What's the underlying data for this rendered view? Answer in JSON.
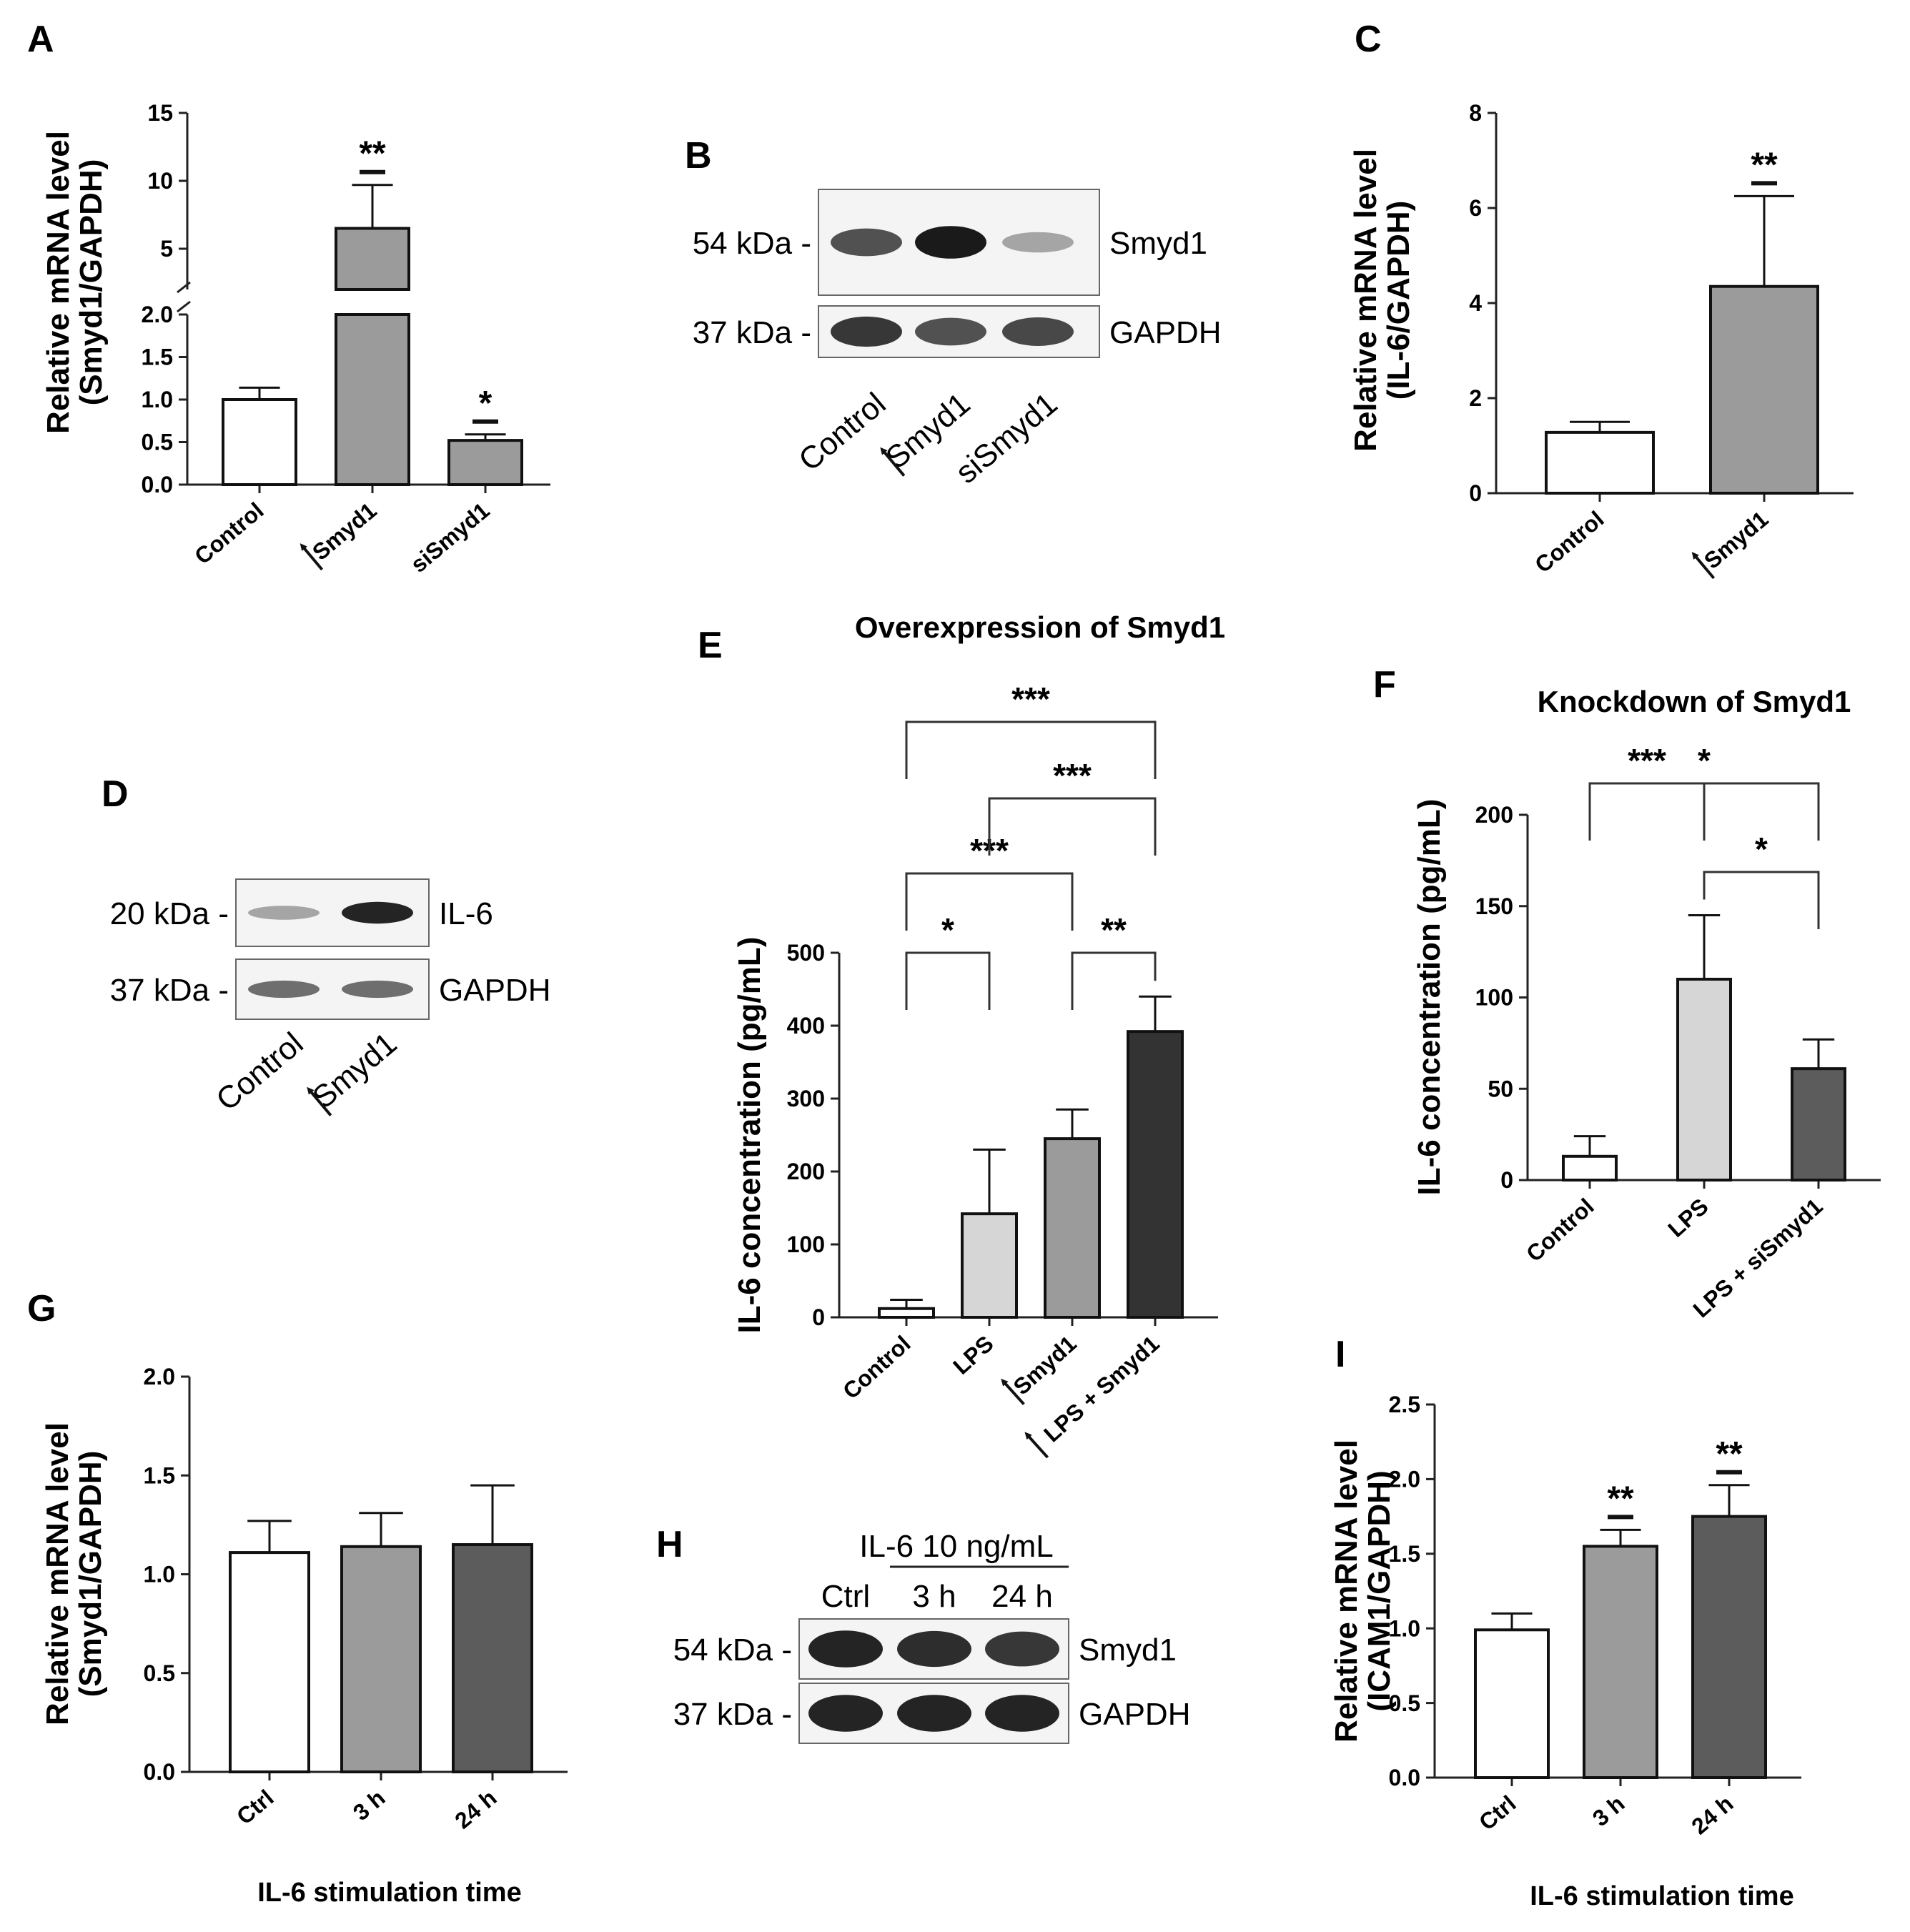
{
  "figure": {
    "panel_letters": [
      "A",
      "B",
      "C",
      "D",
      "E",
      "F",
      "G",
      "H",
      "I"
    ]
  },
  "colors": {
    "white_bar": "#ffffff",
    "light_gray": "#d6d6d6",
    "mid_gray": "#9b9b9b",
    "dark_gray": "#5c5c5c",
    "black_bar": "#333333",
    "band_dark": "#1a1a1a"
  },
  "chart_data": [
    {
      "id": "A",
      "type": "bar",
      "title": "",
      "ylabel": [
        "Relative mRNA level",
        "(Smyd1/GAPDH)"
      ],
      "xlabel": "",
      "categories": [
        "Control",
        "Smyd1",
        "siSmyd1"
      ],
      "category_arrows": [
        false,
        true,
        false
      ],
      "values": [
        1.0,
        6.5,
        0.52
      ],
      "errors": [
        0.14,
        3.2,
        0.07
      ],
      "fills": [
        "#ffffff",
        "#9b9b9b",
        "#9b9b9b"
      ],
      "significance": [
        "",
        "**",
        "*"
      ],
      "broken_axis": true,
      "lower_ylim": [
        0,
        2.0
      ],
      "lower_ticks": [
        "0.0",
        "0.5",
        "1.0",
        "1.5",
        "2.0"
      ],
      "upper_ylim": [
        2.0,
        15
      ],
      "upper_ticks": [
        "5",
        "10",
        "15"
      ]
    },
    {
      "id": "C",
      "type": "bar",
      "title": "",
      "ylabel": [
        "Relative mRNA level",
        "(IL-6/GAPDH)"
      ],
      "xlabel": "",
      "categories": [
        "Control",
        "Smyd1"
      ],
      "category_arrows": [
        false,
        true
      ],
      "values": [
        1.28,
        4.35
      ],
      "errors": [
        0.22,
        1.9
      ],
      "fills": [
        "#ffffff",
        "#9b9b9b"
      ],
      "significance": [
        "",
        "**"
      ],
      "ylim": [
        0,
        8
      ],
      "yticks": [
        "0",
        "2",
        "4",
        "6",
        "8"
      ]
    },
    {
      "id": "E",
      "type": "bar",
      "title": "Overexpression of Smyd1",
      "ylabel": [
        "IL-6 concentration (pg/mL)"
      ],
      "xlabel": "",
      "categories": [
        "Control",
        "LPS",
        "Smyd1",
        "LPS + Smyd1"
      ],
      "category_arrows": [
        false,
        false,
        true,
        true
      ],
      "values": [
        12,
        142,
        245,
        392
      ],
      "errors": [
        12,
        88,
        40,
        48
      ],
      "fills": [
        "#ffffff",
        "#d6d6d6",
        "#9b9b9b",
        "#333333"
      ],
      "ylim": [
        0,
        500
      ],
      "yticks": [
        "0",
        "100",
        "200",
        "300",
        "400",
        "500"
      ],
      "brackets": [
        {
          "from": 0,
          "to": 1,
          "label": "*"
        },
        {
          "from": 2,
          "to": 3,
          "label": "**"
        },
        {
          "from": 0,
          "to": 2,
          "label": "***"
        },
        {
          "from": 1,
          "to": 3,
          "label": "***"
        },
        {
          "from": 0,
          "to": 3,
          "label": "***"
        }
      ]
    },
    {
      "id": "F",
      "type": "bar",
      "title": "Knockdown of Smyd1",
      "ylabel": [
        "IL-6 concentration (pg/mL)"
      ],
      "xlabel": "",
      "categories": [
        "Control",
        "LPS",
        "LPS + siSmyd1"
      ],
      "category_arrows": [
        false,
        false,
        false
      ],
      "values": [
        13,
        110,
        61
      ],
      "errors": [
        11,
        35,
        16
      ],
      "fills": [
        "#ffffff",
        "#d6d6d6",
        "#5c5c5c"
      ],
      "ylim": [
        0,
        200
      ],
      "yticks": [
        "0",
        "50",
        "100",
        "150",
        "200"
      ],
      "brackets": [
        {
          "from": 0,
          "to": 1,
          "label": "***"
        },
        {
          "from": 1,
          "to": 2,
          "label": "*"
        },
        {
          "from": 0,
          "to": 2,
          "label": "*"
        }
      ]
    },
    {
      "id": "G",
      "type": "bar",
      "title": "",
      "ylabel": [
        "Relative mRNA level",
        "(Smyd1/GAPDH)"
      ],
      "xlabel": "IL-6 stimulation time",
      "categories": [
        "Ctrl",
        "3 h",
        "24 h"
      ],
      "category_arrows": [
        false,
        false,
        false
      ],
      "values": [
        1.11,
        1.14,
        1.15
      ],
      "errors": [
        0.16,
        0.17,
        0.3
      ],
      "fills": [
        "#ffffff",
        "#9b9b9b",
        "#5c5c5c"
      ],
      "significance": [
        "",
        "",
        ""
      ],
      "ylim": [
        0,
        2.0
      ],
      "yticks": [
        "0.0",
        "0.5",
        "1.0",
        "1.5",
        "2.0"
      ]
    },
    {
      "id": "I",
      "type": "bar",
      "title": "",
      "ylabel": [
        "Relative mRNA level",
        "(ICAM1/GAPDH)"
      ],
      "xlabel": "IL-6 stimulation time",
      "categories": [
        "Ctrl",
        "3 h",
        "24 h"
      ],
      "category_arrows": [
        false,
        false,
        false
      ],
      "values": [
        0.99,
        1.55,
        1.75
      ],
      "errors": [
        0.11,
        0.11,
        0.21
      ],
      "fills": [
        "#ffffff",
        "#9b9b9b",
        "#5c5c5c"
      ],
      "significance": [
        "",
        "**",
        "**"
      ],
      "ylim": [
        0,
        2.5
      ],
      "yticks": [
        "0.0",
        "0.5",
        "1.0",
        "1.5",
        "2.0",
        "2.5"
      ]
    }
  ],
  "blots": [
    {
      "id": "B",
      "rows": [
        {
          "marker": "54 kDa -",
          "protein": "Smyd1",
          "intensities": [
            0.7,
            1.0,
            0.25
          ]
        },
        {
          "marker": "37 kDa -",
          "protein": "GAPDH",
          "intensities": [
            0.85,
            0.7,
            0.75
          ]
        }
      ],
      "lanes": [
        "Control",
        "Smyd1",
        "siSmyd1"
      ],
      "lane_arrows": [
        false,
        true,
        false
      ]
    },
    {
      "id": "D",
      "rows": [
        {
          "marker": "20 kDa -",
          "protein": "IL-6",
          "intensities": [
            0.25,
            0.95
          ]
        },
        {
          "marker": "37 kDa -",
          "protein": "GAPDH",
          "intensities": [
            0.55,
            0.55
          ]
        }
      ],
      "lanes": [
        "Control",
        "Smyd1"
      ],
      "lane_arrows": [
        false,
        true
      ]
    },
    {
      "id": "H",
      "header": "IL-6 10 ng/mL",
      "header_lanes": [
        "Ctrl",
        "3 h",
        "24 h"
      ],
      "rows": [
        {
          "marker": "54 kDa -",
          "protein": "Smyd1",
          "intensities": [
            0.95,
            0.9,
            0.85
          ]
        },
        {
          "marker": "37 kDa -",
          "protein": "GAPDH",
          "intensities": [
            0.95,
            0.95,
            0.95
          ]
        }
      ]
    }
  ]
}
